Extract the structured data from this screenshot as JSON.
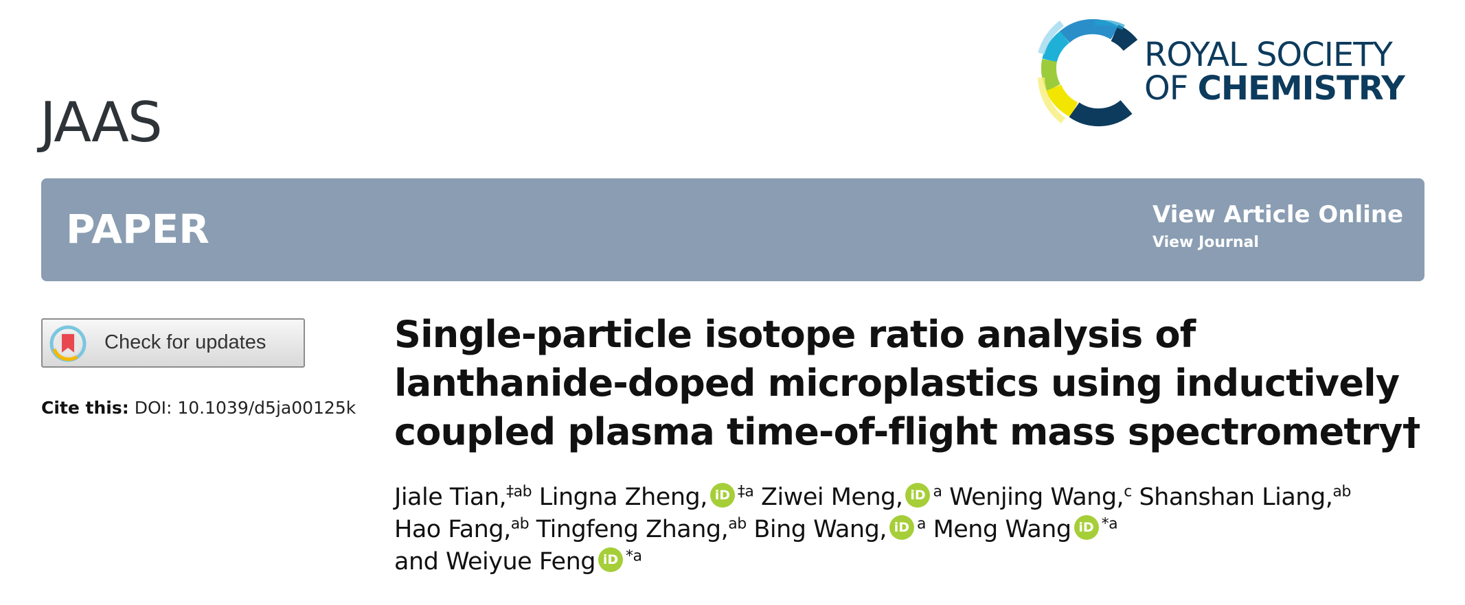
{
  "header": {
    "journal": "JAAS",
    "publisher_line1": "ROYAL SOCIETY",
    "publisher_of": "OF",
    "publisher_chemistry": "CHEMISTRY"
  },
  "banner": {
    "article_type": "PAPER",
    "view_article_online": "View Article Online",
    "view_journal": "View Journal",
    "background_color": "#8a9db2"
  },
  "sidebar": {
    "check_updates_label": "Check for updates",
    "cite_label": "Cite this:",
    "cite_doi": "DOI: 10.1039/d5ja00125k"
  },
  "article": {
    "title": "Single-particle isotope ratio analysis of lanthanide-doped microplastics using inductively coupled plasma time-of-flight mass spectrometry†",
    "authors": [
      {
        "name": "Jiale Tian,",
        "sup": "‡ab",
        "orcid": false
      },
      {
        "name": "Lingna Zheng,",
        "sup": "‡a",
        "orcid": true
      },
      {
        "name": "Ziwei Meng,",
        "sup": "a",
        "orcid": true
      },
      {
        "name": "Wenjing Wang,",
        "sup": "c",
        "orcid": false
      },
      {
        "name": "Shanshan Liang,",
        "sup": "ab",
        "orcid": false
      },
      {
        "name": "Hao Fang,",
        "sup": "ab",
        "orcid": false
      },
      {
        "name": "Tingfeng Zhang,",
        "sup": "ab",
        "orcid": false
      },
      {
        "name": "Bing Wang,",
        "sup": "a",
        "orcid": true
      },
      {
        "name": "Meng Wang",
        "sup": "*a",
        "orcid": true
      },
      {
        "name": "and Weiyue Feng",
        "sup": "*a",
        "orcid": true
      }
    ],
    "orcid_badge": "iD",
    "orcid_color": "#a6ce39"
  }
}
